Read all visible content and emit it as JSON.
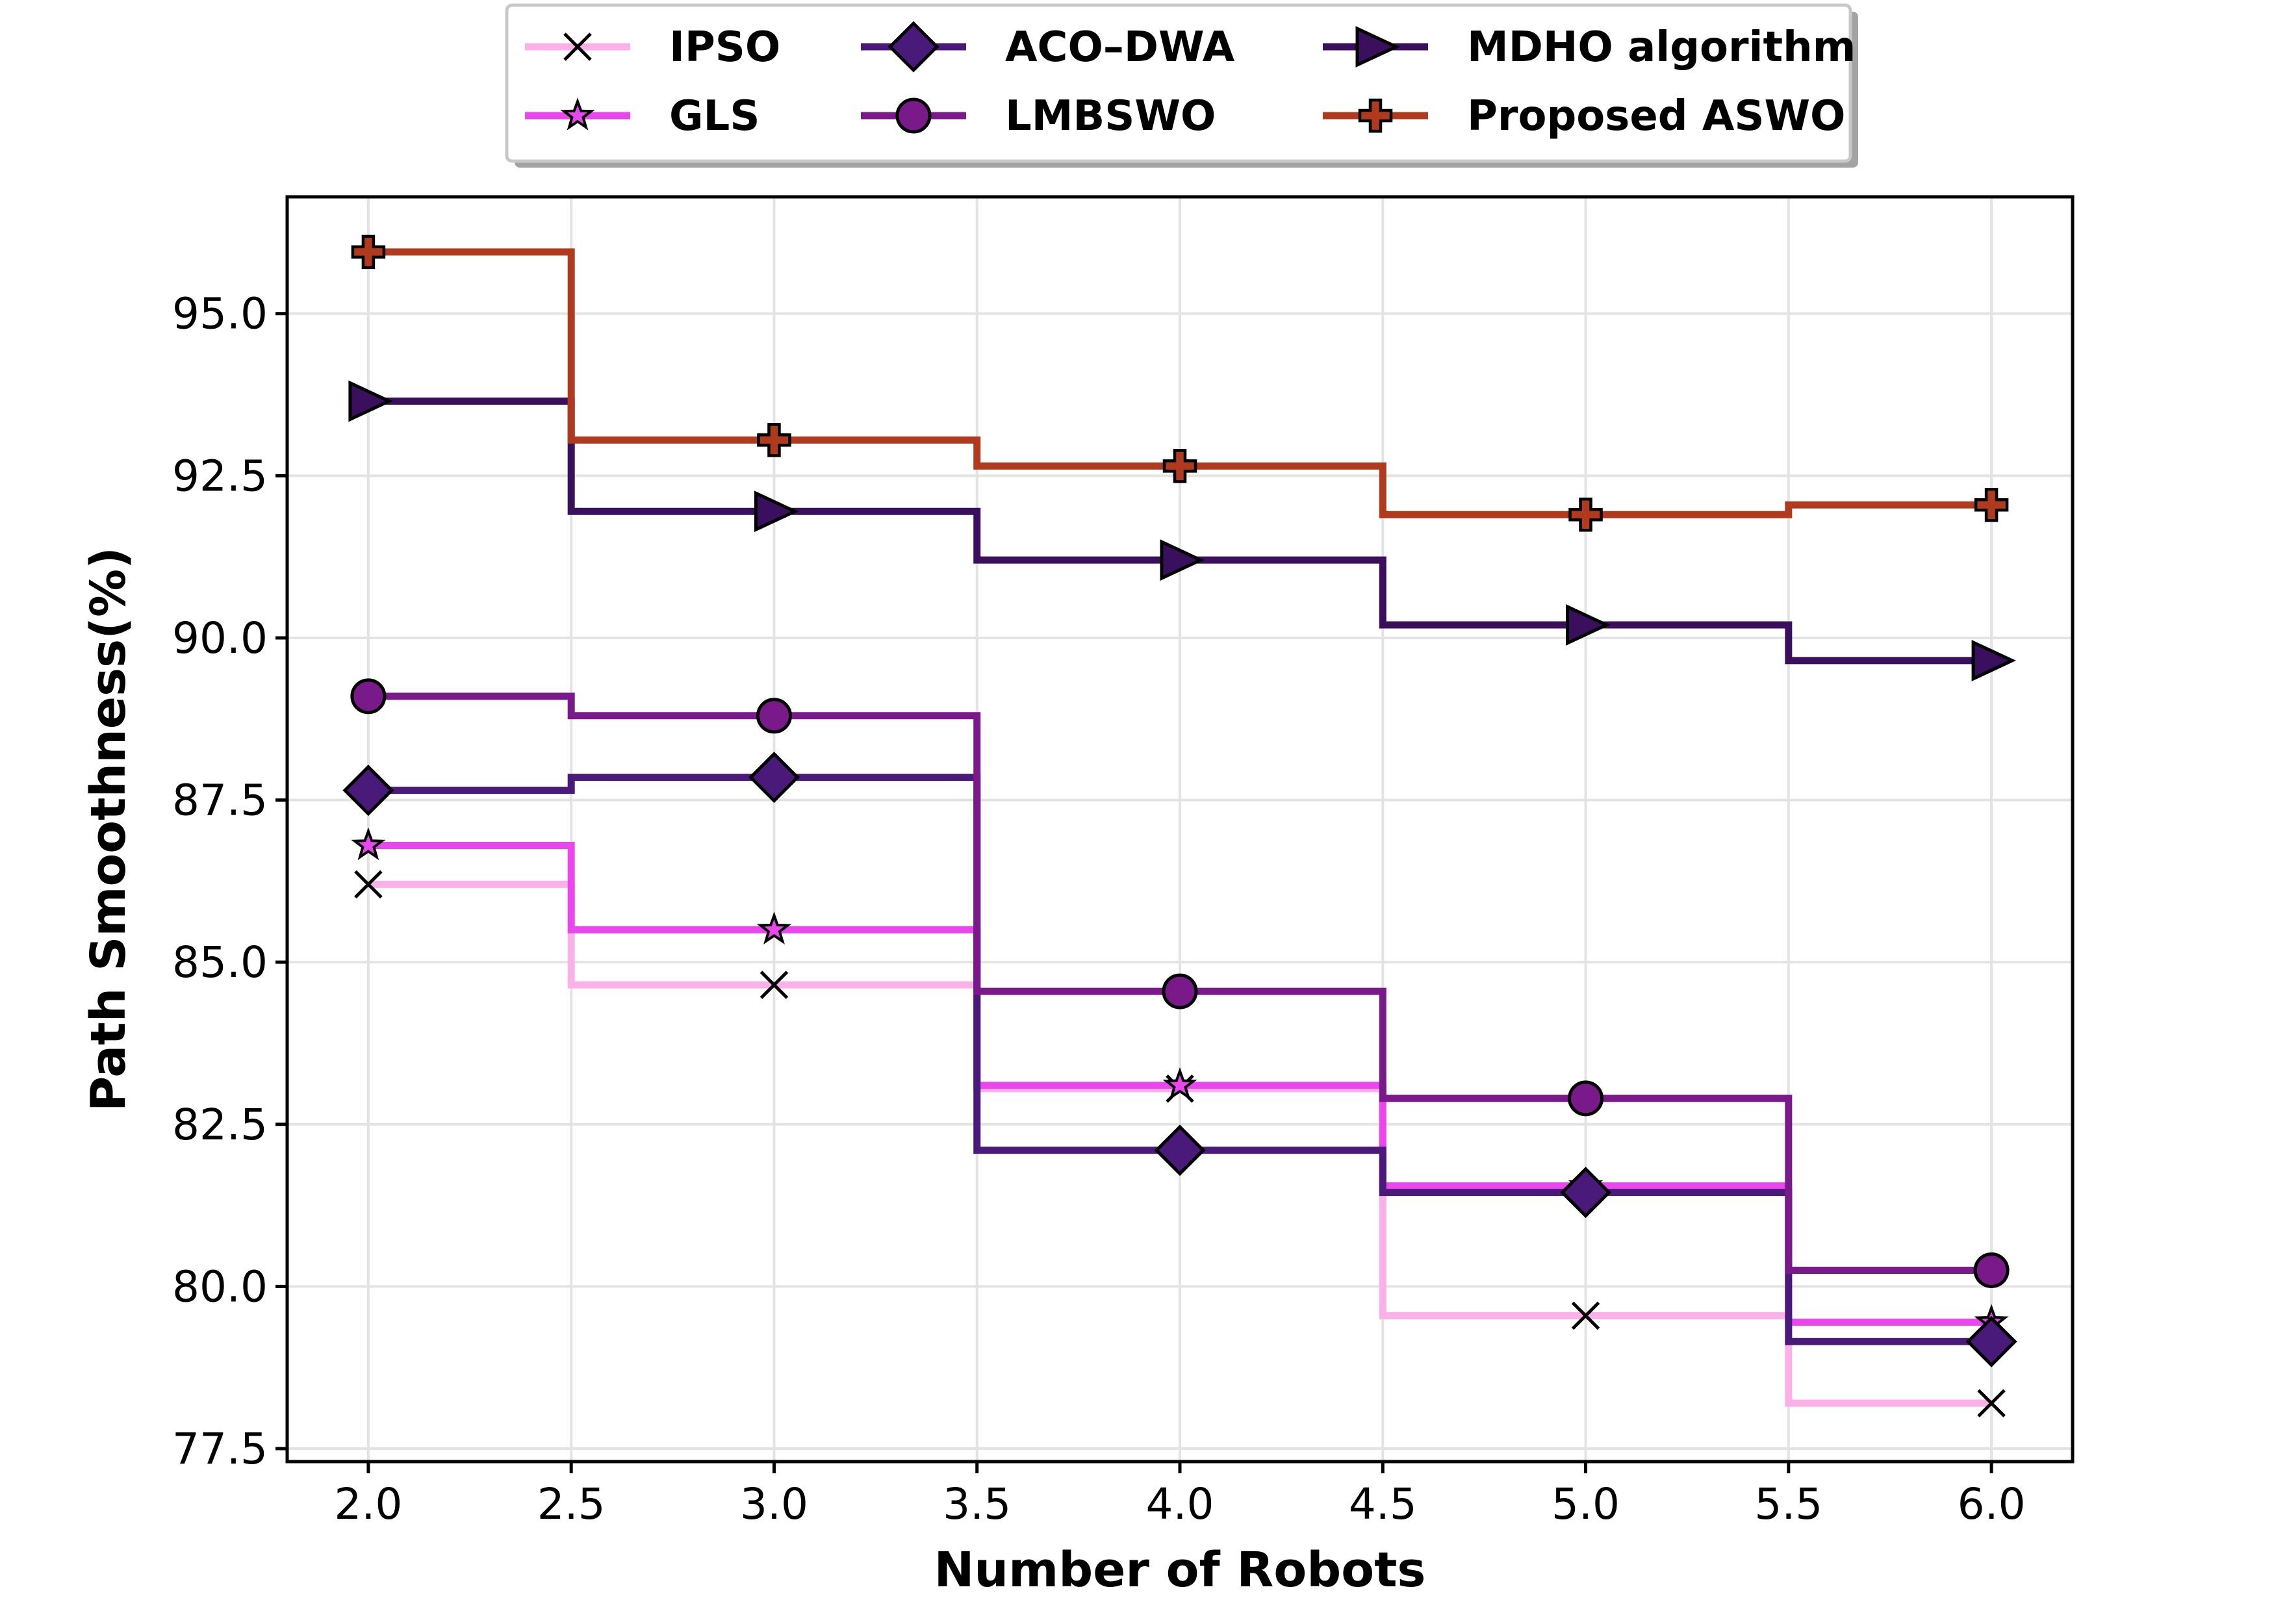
{
  "chart_data": {
    "type": "line",
    "drawstyle": "steps-mid",
    "title": "",
    "xlabel": "Number of Robots",
    "ylabel": "Path Smoothness(%)",
    "xlim": [
      1.8,
      6.2
    ],
    "ylim": [
      77.3,
      96.8
    ],
    "xticks": [
      "2.0",
      "2.5",
      "3.0",
      "3.5",
      "4.0",
      "4.5",
      "5.0",
      "5.5",
      "6.0"
    ],
    "xtick_values": [
      2.0,
      2.5,
      3.0,
      3.5,
      4.0,
      4.5,
      5.0,
      5.5,
      6.0
    ],
    "yticks": [
      "77.5",
      "80.0",
      "82.5",
      "85.0",
      "87.5",
      "90.0",
      "92.5",
      "95.0"
    ],
    "ytick_values": [
      77.5,
      80.0,
      82.5,
      85.0,
      87.5,
      90.0,
      92.5,
      95.0
    ],
    "grid": true,
    "legend_position": "top-center",
    "categories": [
      2.0,
      3.0,
      4.0,
      5.0,
      6.0
    ],
    "series": [
      {
        "name": "IPSO",
        "values": [
          86.2,
          84.65,
          83.05,
          79.55,
          78.2
        ],
        "color": "#fbb0e8",
        "marker": "x"
      },
      {
        "name": "GLS",
        "values": [
          86.8,
          85.5,
          83.1,
          81.55,
          79.45
        ],
        "color": "#ea46ee",
        "marker": "star"
      },
      {
        "name": "ACO–DWA",
        "values": [
          87.65,
          87.85,
          82.1,
          81.45,
          79.15
        ],
        "color": "#4a1a7a",
        "marker": "diamond"
      },
      {
        "name": "LMBSWO",
        "values": [
          89.1,
          88.8,
          84.55,
          82.9,
          80.25
        ],
        "color": "#7a1a8a",
        "marker": "circle"
      },
      {
        "name": "MDHO algorithm",
        "values": [
          93.65,
          91.95,
          91.2,
          90.2,
          89.65
        ],
        "color": "#3a0f5e",
        "marker": "triangle-right"
      },
      {
        "name": "Proposed ASWO",
        "values": [
          95.95,
          93.05,
          92.65,
          91.9,
          92.05
        ],
        "color": "#b03a1e",
        "marker": "plus"
      }
    ]
  }
}
